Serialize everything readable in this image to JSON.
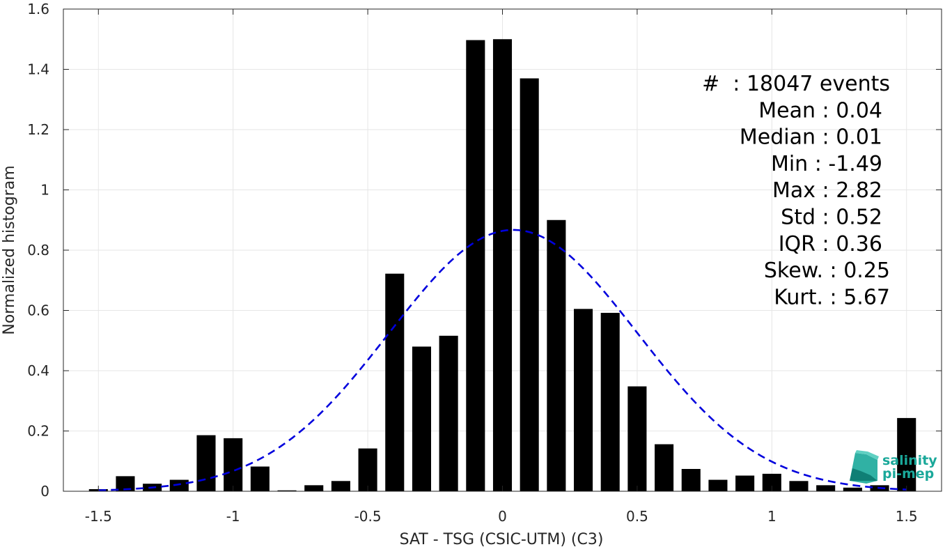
{
  "chart_data": {
    "type": "bar",
    "xlabel": "SAT - TSG (CSIC-UTM) (C3)",
    "ylabel": "Normalized histogram",
    "xlim": [
      -1.63,
      1.63
    ],
    "ylim": [
      0,
      1.6
    ],
    "xticks": [
      -1.5,
      -1,
      -0.5,
      0,
      0.5,
      1,
      1.5
    ],
    "xtick_labels": [
      "-1.5",
      "-1",
      "-0.5",
      "0",
      "0.5",
      "1",
      "1.5"
    ],
    "yticks": [
      0,
      0.2,
      0.4,
      0.6,
      0.8,
      1,
      1.2,
      1.4,
      1.6
    ],
    "ytick_labels": [
      "0",
      "0.2",
      "0.4",
      "0.6",
      "0.8",
      "1",
      "1.2",
      "1.4",
      "1.6"
    ],
    "grid": true,
    "bar_width": 0.07,
    "bars": {
      "x": [
        -1.5,
        -1.4,
        -1.3,
        -1.2,
        -1.1,
        -1.0,
        -0.9,
        -0.8,
        -0.7,
        -0.6,
        -0.5,
        -0.4,
        -0.3,
        -0.2,
        -0.1,
        0.0,
        0.1,
        0.2,
        0.3,
        0.4,
        0.5,
        0.6,
        0.7,
        0.8,
        0.9,
        1.0,
        1.1,
        1.2,
        1.3,
        1.4,
        1.5
      ],
      "values": [
        0.007,
        0.05,
        0.025,
        0.038,
        0.186,
        0.176,
        0.082,
        0.003,
        0.02,
        0.034,
        0.142,
        0.722,
        0.48,
        0.516,
        1.497,
        1.5,
        1.37,
        0.9,
        0.605,
        0.592,
        0.348,
        0.156,
        0.074,
        0.038,
        0.052,
        0.058,
        0.034,
        0.02,
        0.012,
        0.02,
        0.243
      ],
      "color": "#000000"
    },
    "fit_curve": {
      "style": "dashed",
      "color": "#0000dd",
      "mean": 0.04,
      "std": 0.46,
      "x_range": [
        -1.5,
        1.5
      ]
    },
    "stats_lines": [
      "#  : 18047 events",
      "Mean : 0.04",
      "Median : 0.01",
      "Min : -1.49",
      "Max : 2.82",
      "Std : 0.52",
      "IQR : 0.36",
      "Skew. : 0.25",
      "Kurt. : 5.67"
    ],
    "logo": {
      "line1": "salinity",
      "line2": "pi-mep",
      "color": "#1aa89a"
    }
  }
}
